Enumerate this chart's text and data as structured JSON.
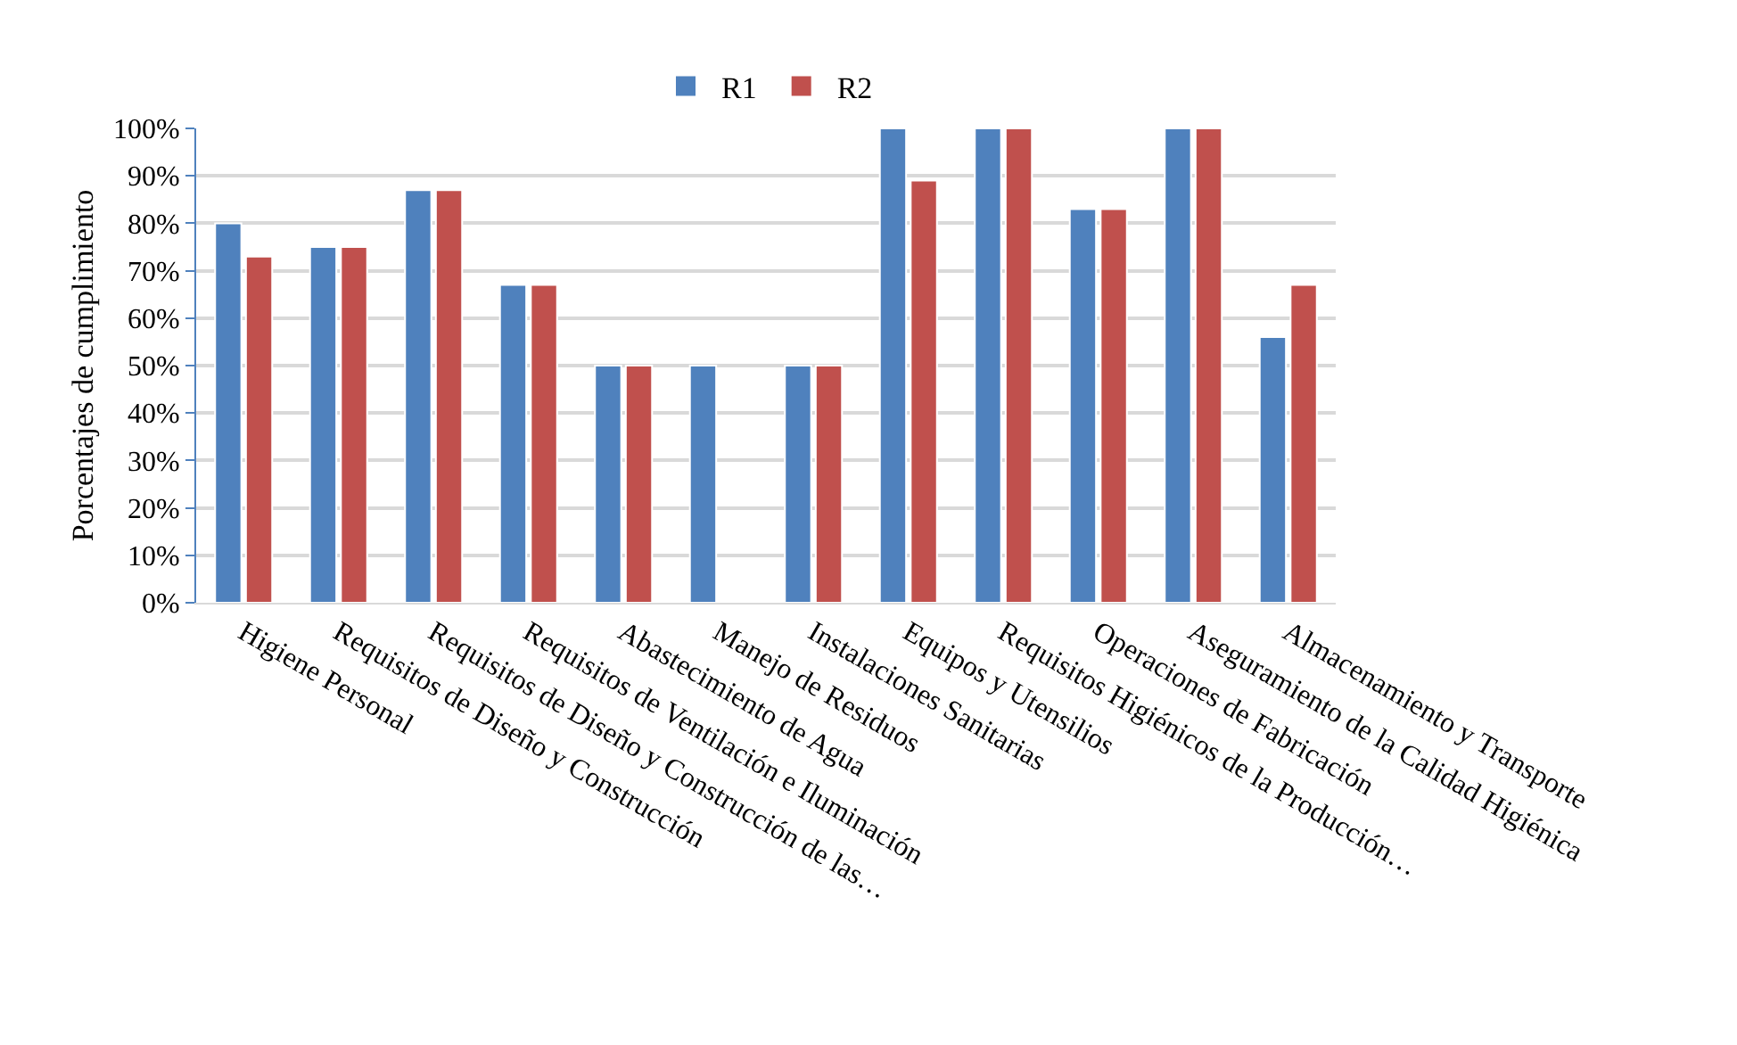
{
  "chart_data": {
    "type": "bar",
    "ylabel": "Porcentajes de cumplimiento",
    "categories": [
      "Higiene Personal",
      "Requisitos de Diseño y Construcción",
      "Requisitos de Diseño y Construcción de las…",
      "Requisitos de Ventilación e Iluminación",
      "Abastecimiento de Agua",
      "Manejo de Residuos",
      "Instalaciones Sanitarias",
      "Equipos y Utensilios",
      "Requisitos Higiénicos de la Producción…",
      "Operaciones de Fabricación",
      "Aseguramiento de la Calidad Higiénica",
      "Almacenamiento y Transporte"
    ],
    "series": [
      {
        "name": "R1",
        "color": "#4f81bd",
        "values": [
          80,
          75,
          87,
          67,
          50,
          50,
          50,
          100,
          100,
          83,
          100,
          56
        ]
      },
      {
        "name": "R2",
        "color": "#c0504d",
        "values": [
          73,
          75,
          87,
          67,
          50,
          null,
          50,
          89,
          100,
          83,
          100,
          67
        ]
      }
    ],
    "ylim": [
      0,
      100
    ],
    "yticks": [
      {
        "value": 0,
        "label": "0%"
      },
      {
        "value": 10,
        "label": "10%"
      },
      {
        "value": 20,
        "label": "20%"
      },
      {
        "value": 30,
        "label": "30%"
      },
      {
        "value": 40,
        "label": "40%"
      },
      {
        "value": 50,
        "label": "50%"
      },
      {
        "value": 60,
        "label": "60%"
      },
      {
        "value": 70,
        "label": "70%"
      },
      {
        "value": 80,
        "label": "80%"
      },
      {
        "value": 90,
        "label": "90%"
      },
      {
        "value": 100,
        "label": "100%"
      }
    ],
    "grid": "y",
    "legend": "top"
  }
}
